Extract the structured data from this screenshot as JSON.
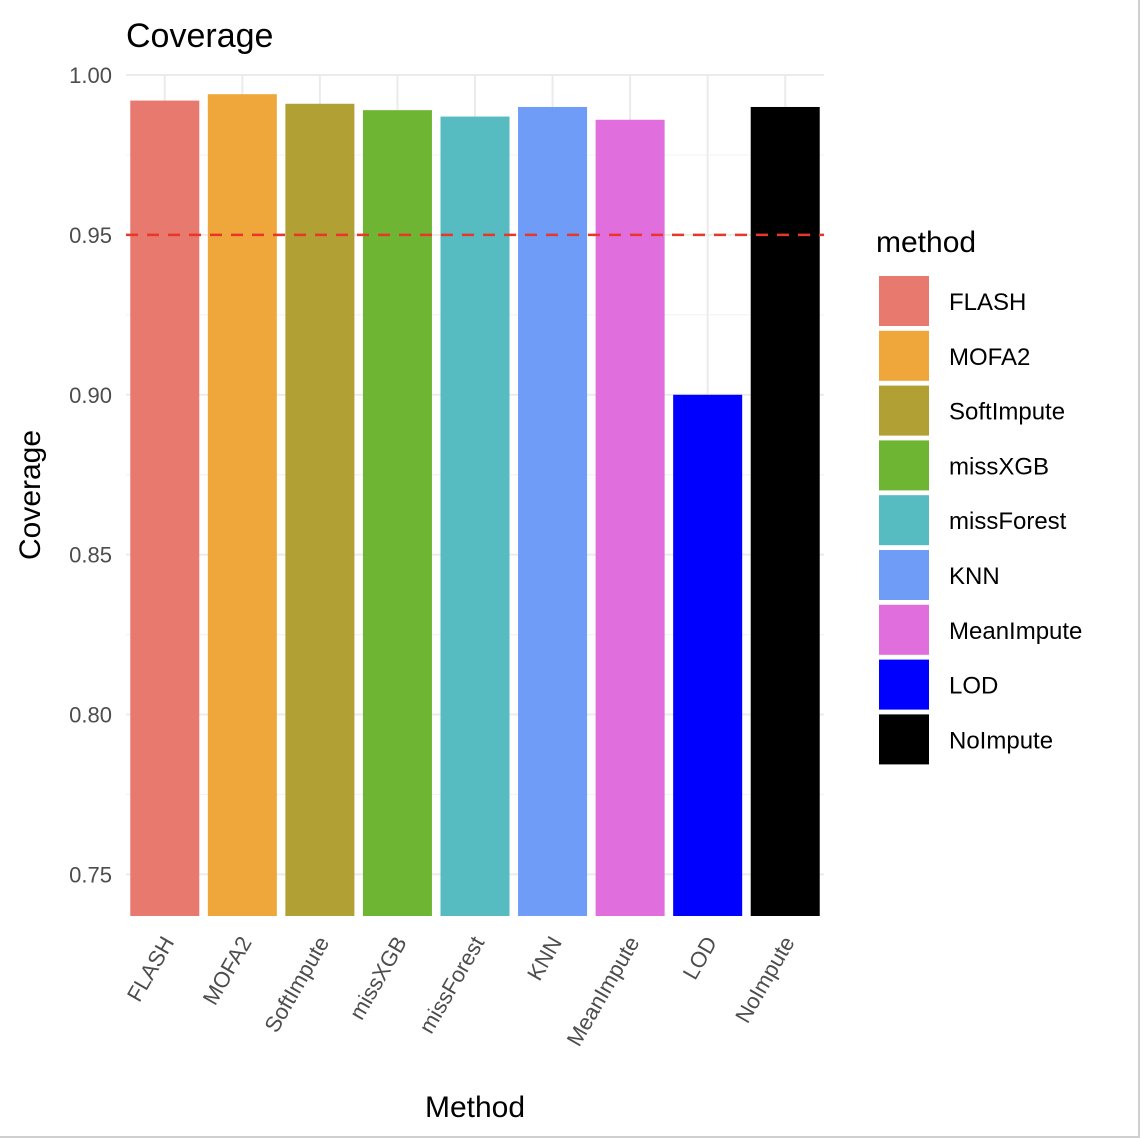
{
  "chart_data": {
    "type": "bar",
    "title": "Coverage",
    "xlabel": "Method",
    "ylabel": "Coverage",
    "categories": [
      "FLASH",
      "MOFA2",
      "SoftImpute",
      "missXGB",
      "missForest",
      "KNN",
      "MeanImpute",
      "LOD",
      "NoImpute"
    ],
    "values": [
      0.992,
      0.994,
      0.991,
      0.989,
      0.987,
      0.99,
      0.986,
      0.9,
      0.99
    ],
    "colors": [
      "#E7796F",
      "#EFA73B",
      "#B1A033",
      "#6EB533",
      "#56BCC2",
      "#6F9CF6",
      "#E16EDD",
      "#0000FF",
      "#000000"
    ],
    "ylim": [
      0.737,
      1.0
    ],
    "yticks": [
      "0.75",
      "0.80",
      "0.85",
      "0.90",
      "0.95",
      "1.00"
    ],
    "reference_line": {
      "y": 0.95,
      "style": "dashed",
      "color": "#E8372A"
    },
    "legend": {
      "title": "method",
      "position": "right",
      "entries": [
        "FLASH",
        "MOFA2",
        "SoftImpute",
        "missXGB",
        "missForest",
        "KNN",
        "MeanImpute",
        "LOD",
        "NoImpute"
      ]
    },
    "grid": true
  }
}
